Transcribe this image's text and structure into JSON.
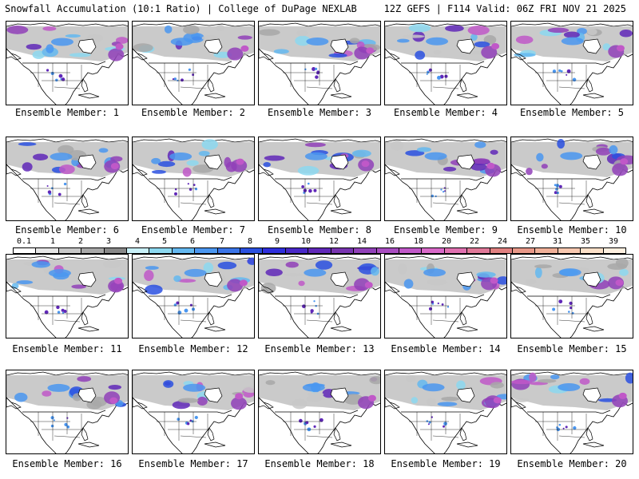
{
  "header": {
    "left": "Snowfall Accumulation (10:1 Ratio) | College of DuPage NEXLAB",
    "right": "12Z GEFS | F114 Valid: 06Z FRI NOV 21 2025"
  },
  "panels": [
    {
      "caption": "Ensemble Member: 1"
    },
    {
      "caption": "Ensemble Member: 2"
    },
    {
      "caption": "Ensemble Member: 3"
    },
    {
      "caption": "Ensemble Member: 4"
    },
    {
      "caption": "Ensemble Member: 5"
    },
    {
      "caption": "Ensemble Member: 6"
    },
    {
      "caption": "Ensemble Member: 7"
    },
    {
      "caption": "Ensemble Member: 8"
    },
    {
      "caption": "Ensemble Member: 9"
    },
    {
      "caption": "Ensemble Member: 10"
    },
    {
      "caption": "Ensemble Member: 11"
    },
    {
      "caption": "Ensemble Member: 12"
    },
    {
      "caption": "Ensemble Member: 13"
    },
    {
      "caption": "Ensemble Member: 14"
    },
    {
      "caption": "Ensemble Member: 15"
    },
    {
      "caption": "Ensemble Member: 16"
    },
    {
      "caption": "Ensemble Member: 17"
    },
    {
      "caption": "Ensemble Member: 18"
    },
    {
      "caption": "Ensemble Member: 19"
    },
    {
      "caption": "Ensemble Member: 20"
    }
  ],
  "colorbar": {
    "ticks": [
      "0.1",
      "1",
      "2",
      "3",
      "4",
      "5",
      "6",
      "7",
      "8",
      "9",
      "10",
      "12",
      "14",
      "16",
      "18",
      "20",
      "22",
      "24",
      "27",
      "31",
      "35",
      "39"
    ],
    "colors": [
      "#ffffff",
      "#e6e6e6",
      "#c8c8c8",
      "#a8a8a8",
      "#888888",
      "#c8f0f8",
      "#8cd8f0",
      "#64b8f0",
      "#4a96f0",
      "#3a74e8",
      "#2a50e0",
      "#2e2edc",
      "#4828c8",
      "#6028b8",
      "#7834b0",
      "#9040b8",
      "#a84cc0",
      "#c058c8",
      "#d868c8",
      "#e070b0",
      "#e07898",
      "#e08080",
      "#e89888",
      "#f0b098",
      "#f8c8b0",
      "#fce0c8",
      "#fff0e0"
    ]
  }
}
